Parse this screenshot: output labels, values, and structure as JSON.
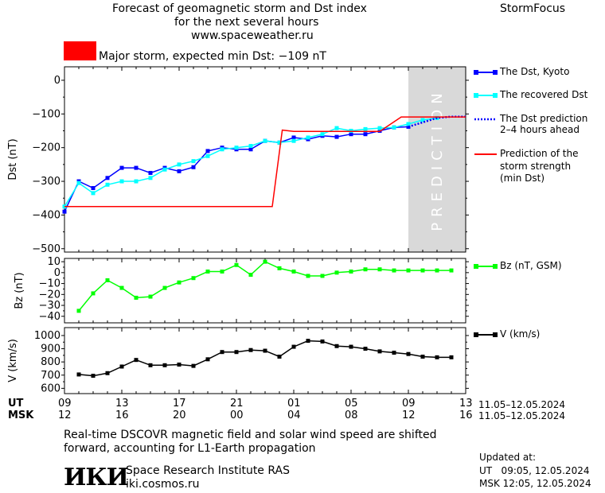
{
  "header": {
    "title_line1": "Forecast of geomagnetic storm and Dst index",
    "title_line2": "for the next several hours",
    "url": "www.spaceweather.ru",
    "brand": "StormFocus",
    "storm_label": "Major storm, expected min Dst: −109 nT",
    "storm_color": "#ff0000",
    "prediction_label": "PREDICTION"
  },
  "legend": {
    "dst_kyoto": "The Dst, Kyoto",
    "recovered": "The recovered Dst",
    "prediction_line1": "The Dst prediction",
    "prediction_line2": "2–4 hours ahead",
    "storm_line1": "Prediction of the",
    "storm_line2": "storm strength",
    "storm_line3": "(min Dst)",
    "bz": "Bz (nT, GSM)",
    "v": "V (km/s)"
  },
  "time_axis": {
    "ut_label": "UT",
    "msk_label": "MSK",
    "ut_ticks": [
      "09",
      "13",
      "17",
      "21",
      "01",
      "05",
      "09",
      "13"
    ],
    "msk_ticks": [
      "12",
      "16",
      "20",
      "00",
      "04",
      "08",
      "12",
      "16"
    ],
    "ut_range": "11.05–12.05.2024",
    "msk_range": "11.05–12.05.2024"
  },
  "chart_data": [
    {
      "type": "line",
      "x_unit": "hours since 11.05.2024 09 UT",
      "xlim": [
        0,
        28
      ],
      "ylabel": "Dst (nT)",
      "ylim": [
        -510,
        40
      ],
      "yticks": [
        0,
        -100,
        -200,
        -300,
        -400,
        -500
      ],
      "ytick_labels": [
        "0",
        "−100",
        "−200",
        "−300",
        "−400",
        "−500"
      ],
      "prediction_region": [
        24,
        28
      ],
      "series": [
        {
          "name": "The Dst, Kyoto",
          "color": "#0000ff",
          "x": [
            0,
            1,
            2,
            3,
            4,
            5,
            6,
            7,
            8,
            9,
            10,
            11,
            12,
            13,
            14,
            15,
            16,
            17,
            18,
            19,
            20,
            21,
            22,
            23,
            24
          ],
          "y": [
            -390,
            -300,
            -320,
            -290,
            -260,
            -260,
            -275,
            -260,
            -270,
            -258,
            -210,
            -200,
            -205,
            -205,
            -180,
            -185,
            -170,
            -175,
            -165,
            -168,
            -160,
            -160,
            -150,
            -140,
            -138
          ]
        },
        {
          "name": "The recovered Dst",
          "color": "#00ffff",
          "x": [
            0,
            1,
            2,
            3,
            4,
            5,
            6,
            7,
            8,
            9,
            10,
            11,
            12,
            13,
            14,
            15,
            16,
            17,
            18,
            19,
            20,
            21,
            22,
            23,
            24,
            25,
            26
          ],
          "y": [
            -375,
            -305,
            -335,
            -310,
            -300,
            -300,
            -290,
            -265,
            -250,
            -240,
            -225,
            -205,
            -200,
            -195,
            -180,
            -185,
            -180,
            -170,
            -160,
            -142,
            -150,
            -145,
            -142,
            -140,
            -130,
            -118,
            -112
          ]
        },
        {
          "name": "The Dst prediction",
          "color": "#0000ff",
          "dashed": true,
          "x": [
            24,
            25,
            26,
            27,
            28
          ],
          "y": [
            -138,
            -125,
            -112,
            -108,
            -108
          ]
        },
        {
          "name": "Prediction of the storm strength (min Dst)",
          "color": "#ff0000",
          "x": [
            0,
            14.5,
            15.2,
            16,
            22,
            23.5,
            24,
            28
          ],
          "y": [
            -375,
            -375,
            -148,
            -152,
            -152,
            -109,
            -109,
            -109
          ]
        }
      ]
    },
    {
      "type": "line",
      "x_unit": "hours since 11.05.2024 09 UT",
      "xlim": [
        0,
        28
      ],
      "ylabel": "Bz (nT)",
      "ylim": [
        -46,
        13
      ],
      "yticks": [
        10,
        0,
        -10,
        -20,
        -30,
        -40
      ],
      "ytick_labels": [
        "10",
        "0",
        "−10",
        "−20",
        "−30",
        "−40"
      ],
      "series": [
        {
          "name": "Bz (nT, GSM)",
          "color": "#00ff00",
          "x": [
            1,
            2,
            3,
            4,
            5,
            6,
            7,
            8,
            9,
            10,
            11,
            12,
            13,
            14,
            15,
            16,
            17,
            18,
            19,
            20,
            21,
            22,
            23,
            24,
            25,
            26,
            27
          ],
          "y": [
            -35,
            -19,
            -7,
            -14,
            -23,
            -22,
            -14,
            -9,
            -5,
            1,
            1,
            7,
            -2,
            10,
            4,
            1,
            -3,
            -3,
            0,
            1,
            3,
            3,
            2,
            2,
            2,
            2,
            2
          ]
        }
      ]
    },
    {
      "type": "line",
      "x_unit": "hours since 11.05.2024 09 UT",
      "xlim": [
        0,
        28
      ],
      "ylabel": "V (km/s)",
      "ylim": [
        560,
        1060
      ],
      "yticks": [
        1000,
        900,
        800,
        700,
        600
      ],
      "ytick_labels": [
        "1000",
        "900",
        "800",
        "700",
        "600"
      ],
      "series": [
        {
          "name": "V (km/s)",
          "color": "#000000",
          "x": [
            1,
            2,
            3,
            4,
            5,
            6,
            7,
            8,
            9,
            10,
            11,
            12,
            13,
            14,
            15,
            16,
            17,
            18,
            19,
            20,
            21,
            22,
            23,
            24,
            25,
            26,
            27
          ],
          "y": [
            705,
            695,
            715,
            765,
            815,
            775,
            775,
            780,
            770,
            820,
            875,
            875,
            890,
            885,
            840,
            915,
            960,
            955,
            920,
            915,
            900,
            880,
            870,
            860,
            840,
            835,
            835
          ]
        }
      ]
    }
  ],
  "footer": {
    "note_line1": "Real-time DSCOVR magnetic field and solar wind speed are shifted",
    "note_line2": "forward, accounting for L1-Earth propagation",
    "logo_text": "ИКИ",
    "institute": "Space Research Institute RAS",
    "site": "iki.cosmos.ru",
    "updated_label": "Updated at:",
    "updated_ut": "UT   09:05, 12.05.2024",
    "updated_msk": "MSK 12:05, 12.05.2024"
  }
}
